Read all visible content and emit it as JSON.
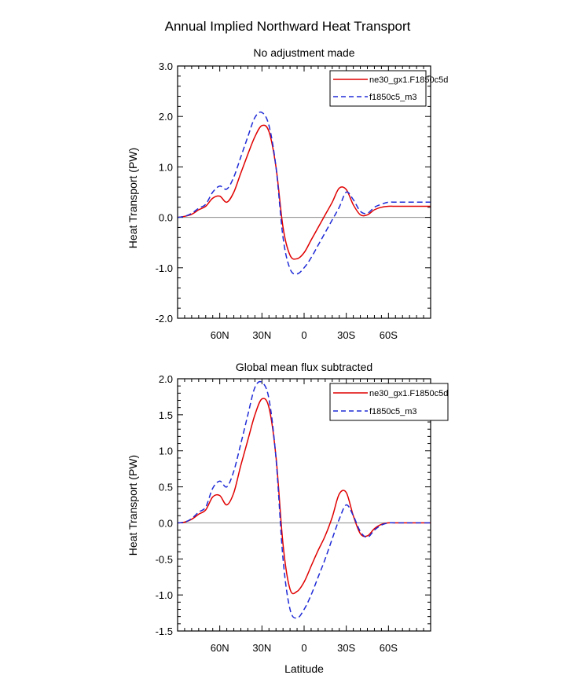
{
  "figure_title": "Annual Implied Northward Heat Transport",
  "chart_data": [
    {
      "type": "line",
      "title": "No adjustment made",
      "xlabel": "",
      "ylabel": "Heat Transport (PW)",
      "xlim": [
        90,
        -90
      ],
      "ylim": [
        -2.0,
        3.0
      ],
      "yticks": [
        -2.0,
        -1.0,
        0.0,
        1.0,
        2.0,
        3.0
      ],
      "ytick_labels": [
        "-2.0",
        "-1.0",
        "0.0",
        "1.0",
        "2.0",
        "3.0"
      ],
      "xticks": [
        60,
        30,
        0,
        -30,
        -60
      ],
      "xtick_labels": [
        "60N",
        "30N",
        "0",
        "30S",
        "60S"
      ],
      "legend_position": "top-right",
      "x": [
        90,
        85,
        80,
        75,
        70,
        65,
        60,
        55,
        50,
        45,
        40,
        35,
        30,
        25,
        20,
        15,
        10,
        5,
        0,
        -5,
        -10,
        -15,
        -20,
        -25,
        -30,
        -35,
        -40,
        -45,
        -50,
        -55,
        -60,
        -65,
        -70,
        -75,
        -80,
        -85,
        -90
      ],
      "series": [
        {
          "name": "ne30_gx1.F1850c5d",
          "color": "#e00000",
          "dash": "solid",
          "values": [
            0.0,
            0.02,
            0.06,
            0.15,
            0.22,
            0.38,
            0.42,
            0.3,
            0.5,
            0.88,
            1.25,
            1.6,
            1.82,
            1.7,
            1.0,
            -0.2,
            -0.75,
            -0.82,
            -0.7,
            -0.45,
            -0.2,
            0.05,
            0.3,
            0.58,
            0.55,
            0.25,
            0.05,
            0.05,
            0.15,
            0.2,
            0.22,
            0.22,
            0.22,
            0.22,
            0.22,
            0.22,
            0.22
          ]
        },
        {
          "name": "f1850c5_m3",
          "color": "#1f2bd6",
          "dash": "dashed",
          "values": [
            0.0,
            0.02,
            0.08,
            0.18,
            0.26,
            0.5,
            0.62,
            0.56,
            0.8,
            1.2,
            1.6,
            1.98,
            2.08,
            1.82,
            1.0,
            -0.4,
            -1.02,
            -1.12,
            -1.0,
            -0.8,
            -0.55,
            -0.3,
            -0.05,
            0.2,
            0.5,
            0.35,
            0.12,
            0.08,
            0.2,
            0.26,
            0.3,
            0.3,
            0.3,
            0.3,
            0.3,
            0.3,
            0.3
          ]
        }
      ]
    },
    {
      "type": "line",
      "title": "Global mean flux subtracted",
      "xlabel": "Latitude",
      "ylabel": "Heat Transport (PW)",
      "xlim": [
        90,
        -90
      ],
      "ylim": [
        -1.5,
        2.0
      ],
      "yticks": [
        -1.5,
        -1.0,
        -0.5,
        0.0,
        0.5,
        1.0,
        1.5,
        2.0
      ],
      "ytick_labels": [
        "-1.5",
        "-1.0",
        "-0.5",
        "0.0",
        "0.5",
        "1.0",
        "1.5",
        "2.0"
      ],
      "xticks": [
        60,
        30,
        0,
        -30,
        -60
      ],
      "xtick_labels": [
        "60N",
        "30N",
        "0",
        "30S",
        "60S"
      ],
      "legend_position": "top-right",
      "x": [
        90,
        85,
        80,
        75,
        70,
        65,
        60,
        55,
        50,
        45,
        40,
        35,
        30,
        25,
        20,
        15,
        10,
        5,
        0,
        -5,
        -10,
        -15,
        -20,
        -25,
        -30,
        -35,
        -40,
        -45,
        -50,
        -55,
        -60,
        -65,
        -70,
        -75,
        -80,
        -85,
        -90
      ],
      "series": [
        {
          "name": "ne30_gx1.F1850c5d",
          "color": "#e00000",
          "dash": "solid",
          "values": [
            0.0,
            0.01,
            0.05,
            0.12,
            0.18,
            0.36,
            0.38,
            0.25,
            0.42,
            0.8,
            1.15,
            1.5,
            1.72,
            1.6,
            0.92,
            -0.3,
            -0.92,
            -0.95,
            -0.82,
            -0.6,
            -0.38,
            -0.18,
            0.08,
            0.4,
            0.42,
            0.1,
            -0.15,
            -0.18,
            -0.08,
            -0.02,
            0.0,
            0.0,
            0.0,
            0.0,
            0.0,
            0.0,
            0.0
          ]
        },
        {
          "name": "f1850c5_m3",
          "color": "#1f2bd6",
          "dash": "dashed",
          "values": [
            0.0,
            0.01,
            0.06,
            0.15,
            0.22,
            0.48,
            0.58,
            0.5,
            0.72,
            1.1,
            1.5,
            1.88,
            1.95,
            1.72,
            0.9,
            -0.5,
            -1.2,
            -1.32,
            -1.2,
            -1.0,
            -0.75,
            -0.5,
            -0.22,
            0.05,
            0.25,
            0.1,
            -0.12,
            -0.2,
            -0.1,
            -0.03,
            0.0,
            0.0,
            0.0,
            0.0,
            0.0,
            0.0,
            0.0
          ]
        }
      ]
    }
  ]
}
